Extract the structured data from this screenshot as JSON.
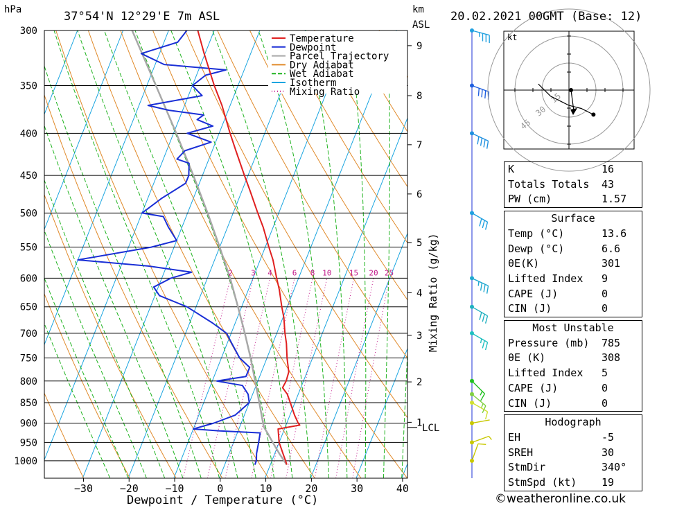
{
  "header": {
    "location": "37°54'N  12°29'E  7m  ASL",
    "run": "20.02.2021  00GMT  (Base: 12)",
    "p_unit": "hPa",
    "km_unit": "km",
    "asl_unit": "ASL"
  },
  "colors": {
    "temperature": "#e02020",
    "dewpoint": "#1a2fd6",
    "parcel": "#a8a8a8",
    "dry_adiabat": "#e08a2a",
    "wet_adiabat": "#1fb31f",
    "isotherm": "#1aa5e0",
    "mixing_ratio": "#c2188a"
  },
  "chart_data": {
    "type": "line",
    "subtype": "skew-T log-P",
    "xlabel": "Dewpoint / Temperature (°C)",
    "x_ticks": [
      -30,
      -20,
      -10,
      0,
      10,
      20,
      30,
      40
    ],
    "pressure_levels": [
      300,
      350,
      400,
      450,
      500,
      550,
      600,
      650,
      700,
      750,
      800,
      850,
      900,
      950,
      1000
    ],
    "km_ticks": [
      {
        "label": "1",
        "p": 898
      },
      {
        "label": "2",
        "p": 802
      },
      {
        "label": "3",
        "p": 704
      },
      {
        "label": "4",
        "p": 625
      },
      {
        "label": "5",
        "p": 543
      },
      {
        "label": "6",
        "p": 474
      },
      {
        "label": "7",
        "p": 413
      },
      {
        "label": "8",
        "p": 360
      },
      {
        "label": "9",
        "p": 313
      }
    ],
    "lcl": {
      "label": "LCL",
      "p": 911
    },
    "secondary_ylabel": "Mixing Ratio (g/kg)",
    "mixing_ratio_labels": [
      "2",
      "3",
      "4",
      "6",
      "8",
      "10",
      "15",
      "20",
      "25"
    ],
    "legend": [
      "Temperature",
      "Dewpoint",
      "Parcel Trajectory",
      "Dry Adiabat",
      "Wet Adiabat",
      "Isotherm",
      "Mixing Ratio"
    ],
    "legend_placement": "top-right",
    "series": [
      {
        "name": "Temperature",
        "points": [
          [
            1011,
            13.6
          ],
          [
            1000,
            13
          ],
          [
            980,
            11.8
          ],
          [
            950,
            10
          ],
          [
            925,
            9
          ],
          [
            915,
            8.6
          ],
          [
            905,
            13
          ],
          [
            900,
            12.5
          ],
          [
            880,
            11
          ],
          [
            850,
            9
          ],
          [
            830,
            7.6
          ],
          [
            815,
            6
          ],
          [
            800,
            6.2
          ],
          [
            780,
            6
          ],
          [
            750,
            4.4
          ],
          [
            720,
            3
          ],
          [
            700,
            1.8
          ],
          [
            670,
            0.2
          ],
          [
            650,
            -1.2
          ],
          [
            620,
            -3.2
          ],
          [
            600,
            -4.8
          ],
          [
            570,
            -7.2
          ],
          [
            550,
            -9.2
          ],
          [
            520,
            -12.2
          ],
          [
            500,
            -14.6
          ],
          [
            470,
            -18.2
          ],
          [
            450,
            -20.8
          ],
          [
            420,
            -24.8
          ],
          [
            400,
            -27.6
          ],
          [
            370,
            -31.8
          ],
          [
            350,
            -35.2
          ],
          [
            320,
            -40.2
          ],
          [
            300,
            -43.6
          ]
        ]
      },
      {
        "name": "Dewpoint",
        "points": [
          [
            1011,
            6.6
          ],
          [
            1000,
            6.6
          ],
          [
            980,
            6
          ],
          [
            950,
            5.5
          ],
          [
            925,
            5
          ],
          [
            920,
            -4
          ],
          [
            915,
            -10
          ],
          [
            900,
            -6
          ],
          [
            880,
            -2
          ],
          [
            850,
            0
          ],
          [
            830,
            -1
          ],
          [
            810,
            -3
          ],
          [
            800,
            -9
          ],
          [
            790,
            -3
          ],
          [
            770,
            -3
          ],
          [
            750,
            -6
          ],
          [
            720,
            -9
          ],
          [
            700,
            -11
          ],
          [
            680,
            -15
          ],
          [
            650,
            -22
          ],
          [
            630,
            -29
          ],
          [
            615,
            -31
          ],
          [
            600,
            -28
          ],
          [
            590,
            -24
          ],
          [
            580,
            -34
          ],
          [
            570,
            -50
          ],
          [
            550,
            -35
          ],
          [
            540,
            -30
          ],
          [
            520,
            -33
          ],
          [
            505,
            -35
          ],
          [
            500,
            -40
          ],
          [
            480,
            -37
          ],
          [
            460,
            -33
          ],
          [
            450,
            -33
          ],
          [
            435,
            -34
          ],
          [
            430,
            -37
          ],
          [
            420,
            -36
          ],
          [
            410,
            -31
          ],
          [
            400,
            -37
          ],
          [
            392,
            -32
          ],
          [
            385,
            -36
          ],
          [
            380,
            -35
          ],
          [
            375,
            -43
          ],
          [
            370,
            -48
          ],
          [
            360,
            -37
          ],
          [
            350,
            -40
          ],
          [
            340,
            -38
          ],
          [
            335,
            -34
          ],
          [
            330,
            -48
          ],
          [
            320,
            -54
          ],
          [
            310,
            -47
          ],
          [
            300,
            -46
          ]
        ]
      },
      {
        "name": "Parcel Trajectory",
        "points": [
          [
            1011,
            13.6
          ],
          [
            980,
            11
          ],
          [
            950,
            8.6
          ],
          [
            925,
            6.6
          ],
          [
            911,
            5.4
          ],
          [
            900,
            4.8
          ],
          [
            850,
            2.2
          ],
          [
            800,
            -0.6
          ],
          [
            750,
            -3.6
          ],
          [
            700,
            -7
          ],
          [
            650,
            -10.8
          ],
          [
            600,
            -15
          ],
          [
            550,
            -20
          ],
          [
            500,
            -25.6
          ],
          [
            450,
            -32
          ],
          [
            400,
            -39.4
          ],
          [
            350,
            -48
          ],
          [
            300,
            -58
          ]
        ]
      }
    ],
    "wind_profile": [
      {
        "p": 1000,
        "dir": 200,
        "kt": 10,
        "color": "#c8c800"
      },
      {
        "p": 950,
        "dir": 250,
        "kt": 5,
        "color": "#c8c800"
      },
      {
        "p": 900,
        "dir": 260,
        "kt": 3,
        "color": "#c8c800"
      },
      {
        "p": 850,
        "dir": 300,
        "kt": 12,
        "color": "#d0e030"
      },
      {
        "p": 830,
        "dir": 310,
        "kt": 18,
        "color": "#80d040"
      },
      {
        "p": 800,
        "dir": 315,
        "kt": 15,
        "color": "#20c020"
      },
      {
        "p": 700,
        "dir": 300,
        "kt": 25,
        "color": "#20c0c0"
      },
      {
        "p": 650,
        "dir": 300,
        "kt": 30,
        "color": "#20b0c0"
      },
      {
        "p": 600,
        "dir": 295,
        "kt": 35,
        "color": "#20a8d0"
      },
      {
        "p": 500,
        "dir": 300,
        "kt": 30,
        "color": "#20a0e0"
      },
      {
        "p": 400,
        "dir": 295,
        "kt": 40,
        "color": "#2090e0"
      },
      {
        "p": 350,
        "dir": 290,
        "kt": 40,
        "color": "#2060e0"
      },
      {
        "p": 300,
        "dir": 285,
        "kt": 35,
        "color": "#20a0e0"
      }
    ],
    "hodograph": {
      "unit": "kt",
      "ring_labels": [
        "15",
        "30",
        "45"
      ],
      "points_kt": [
        [
          8,
          -8
        ],
        [
          4,
          -6
        ],
        [
          0,
          -5
        ],
        [
          -2,
          -4
        ],
        [
          -6,
          -2
        ],
        [
          -10,
          2
        ]
      ]
    }
  },
  "indices": [
    {
      "label": "K",
      "value": "16"
    },
    {
      "label": "Totals Totals",
      "value": "43"
    },
    {
      "label": "PW (cm)",
      "value": "1.57"
    }
  ],
  "surface": {
    "title": "Surface",
    "rows": [
      {
        "label": "Temp (°C)",
        "value": "13.6"
      },
      {
        "label": "Dewp (°C)",
        "value": "6.6"
      },
      {
        "label": "θE(K)",
        "value": "301"
      },
      {
        "label": "Lifted Index",
        "value": "9"
      },
      {
        "label": "CAPE (J)",
        "value": "0"
      },
      {
        "label": "CIN (J)",
        "value": "0"
      }
    ]
  },
  "most_unstable": {
    "title": "Most Unstable",
    "rows": [
      {
        "label": "Pressure (mb)",
        "value": "785"
      },
      {
        "label": "θE (K)",
        "value": "308"
      },
      {
        "label": "Lifted Index",
        "value": "5"
      },
      {
        "label": "CAPE (J)",
        "value": "0"
      },
      {
        "label": "CIN (J)",
        "value": "0"
      }
    ]
  },
  "hodograph_table": {
    "title": "Hodograph",
    "rows": [
      {
        "label": "EH",
        "value": "-5"
      },
      {
        "label": "SREH",
        "value": "30"
      },
      {
        "label": "StmDir",
        "value": "340°"
      },
      {
        "label": "StmSpd (kt)",
        "value": "19"
      }
    ]
  },
  "footer": {
    "brand": "©weatheronline.co.uk"
  }
}
